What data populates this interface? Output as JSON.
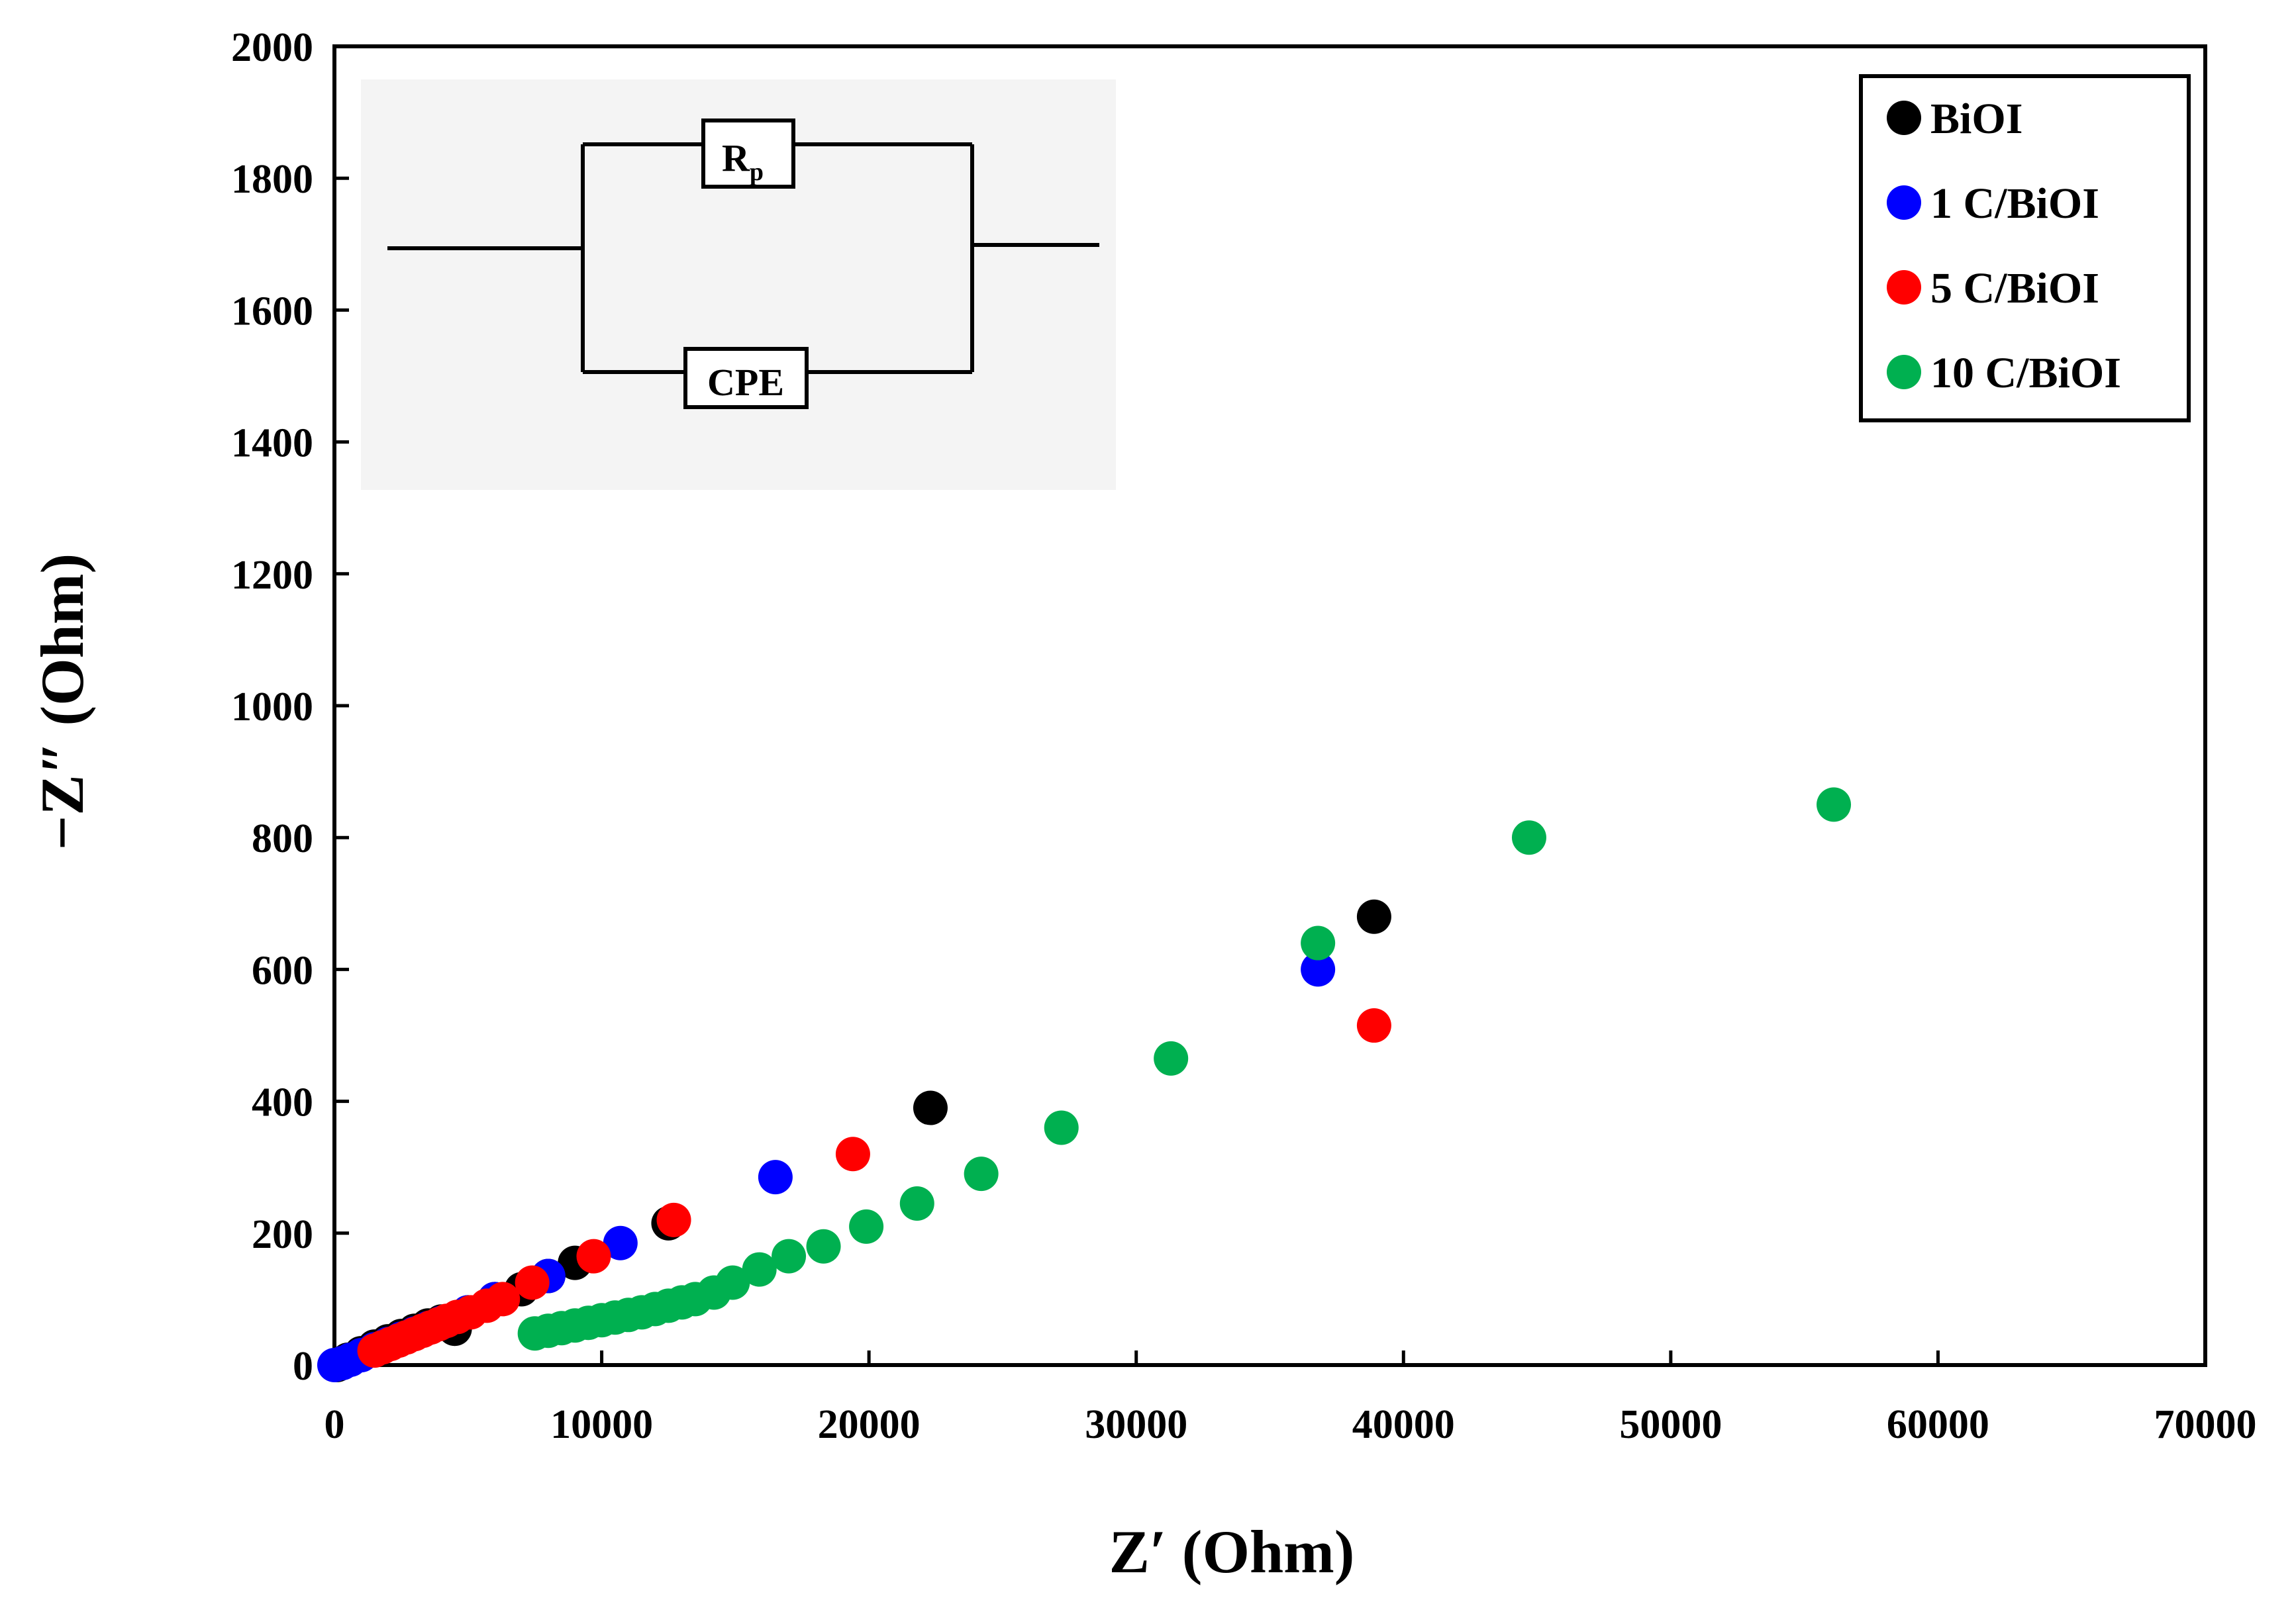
{
  "chart_data": {
    "type": "scatter",
    "title": "",
    "xlabel": "Z′ (Ohm)",
    "ylabel": "−Z″ (Ohm)",
    "xlim": [
      0,
      70000
    ],
    "ylim": [
      0,
      2000
    ],
    "xticks": [
      0,
      10000,
      20000,
      30000,
      40000,
      50000,
      60000,
      70000
    ],
    "yticks": [
      0,
      200,
      400,
      600,
      800,
      1000,
      1200,
      1400,
      1600,
      1800,
      2000
    ],
    "grid": false,
    "legend_position": "top-right",
    "series": [
      {
        "name": "BiOI",
        "color": "#000000",
        "x": [
          100,
          500,
          1000,
          1500,
          2000,
          2500,
          3000,
          3500,
          4000,
          4500,
          5000,
          6000,
          7000,
          8000,
          9000,
          12500,
          22300,
          38900
        ],
        "y": [
          0,
          8,
          18,
          28,
          36,
          44,
          52,
          60,
          66,
          55,
          80,
          100,
          115,
          135,
          155,
          215,
          390,
          680
        ]
      },
      {
        "name": "1 C/BiOI",
        "color": "#0000ff",
        "x": [
          0,
          300,
          600,
          1000,
          1500,
          2000,
          2500,
          3000,
          3500,
          4000,
          5000,
          6000,
          8000,
          10700,
          16500,
          36800
        ],
        "y": [
          0,
          3,
          8,
          15,
          24,
          32,
          40,
          48,
          56,
          64,
          80,
          100,
          135,
          185,
          285,
          600
        ]
      },
      {
        "name": "5 C/BiOI",
        "color": "#ff0000",
        "x": [
          1500,
          1800,
          2100,
          2400,
          2700,
          3000,
          3300,
          3600,
          3900,
          4200,
          4600,
          5100,
          5700,
          6300,
          7400,
          9700,
          12700,
          19400,
          38900
        ],
        "y": [
          22,
          27,
          32,
          37,
          42,
          47,
          52,
          57,
          62,
          67,
          73,
          80,
          90,
          100,
          125,
          165,
          220,
          320,
          515
        ]
      },
      {
        "name": "10 C/BiOI",
        "color": "#00b050",
        "x": [
          7500,
          8000,
          8500,
          9000,
          9500,
          10000,
          10500,
          11000,
          11500,
          12000,
          12500,
          13000,
          13500,
          14200,
          14900,
          15900,
          17000,
          18300,
          19900,
          21800,
          24200,
          27200,
          31300,
          36800,
          44700,
          56100
        ],
        "y": [
          48,
          52,
          56,
          60,
          64,
          68,
          72,
          76,
          80,
          85,
          90,
          95,
          100,
          110,
          125,
          145,
          165,
          180,
          210,
          245,
          290,
          360,
          465,
          640,
          800,
          850
        ]
      }
    ],
    "inset": {
      "type": "equivalent-circuit",
      "elements": [
        "Rp",
        "CPE"
      ]
    }
  }
}
